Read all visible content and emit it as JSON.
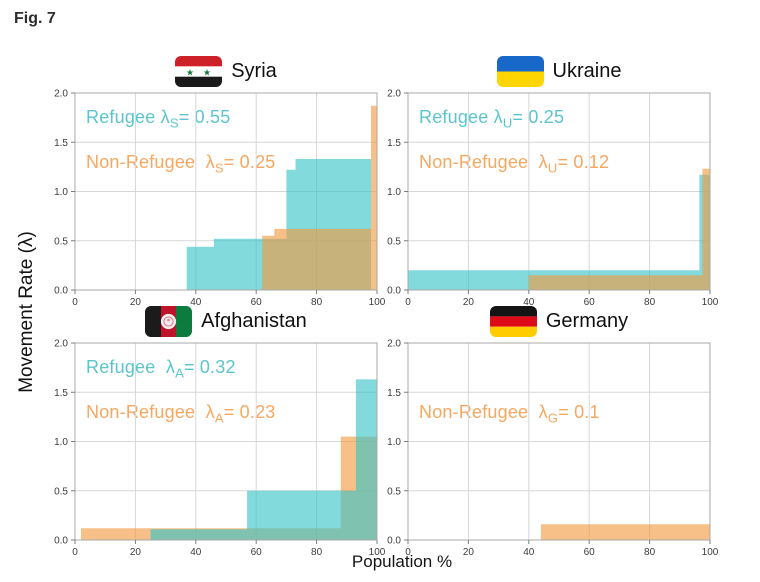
{
  "figure_label": "Fig. 7",
  "ylabel": "Movement Rate (λ)",
  "xlabel": "Population %",
  "colors": {
    "refugee_fill": "#35C4C8",
    "nonrefugee_fill": "#F29A3F",
    "fill_opacity": 0.62,
    "refugee_text": "#5BC5CE",
    "nonrefugee_text": "#F7A75F",
    "grid": "#D7D7D7",
    "spine": "#A8A8A8",
    "tick": "#7C7C7C"
  },
  "chart_data": [
    {
      "type": "bar",
      "subtype": "step-histogram",
      "country": "Syria",
      "flag": "syria",
      "xlim": [
        0,
        100
      ],
      "ylim": [
        0,
        2
      ],
      "grid": true,
      "x_ticks": [
        0,
        20,
        40,
        60,
        80,
        100
      ],
      "y_ticks": [
        0,
        0.5,
        1,
        1.5,
        2
      ],
      "y_tick_labels": [
        "0.0",
        "0.5",
        "1.0",
        "1.5",
        "2.0"
      ],
      "annotations": [
        {
          "series": "refugee",
          "line": 1,
          "prefix": "Refugee λ",
          "sub": "S",
          "suffix": "= 0.55",
          "lambda": 0.55
        },
        {
          "series": "nonrefugee",
          "line": 2,
          "prefix": "Non-Refugee  λ",
          "sub": "S",
          "suffix": "= 0.25",
          "lambda": 0.25
        }
      ],
      "series": [
        {
          "name": "Refugee",
          "key": "refugee",
          "segments": [
            [
              37,
              46,
              0.44
            ],
            [
              46,
              70,
              0.52
            ],
            [
              70,
              73,
              1.22
            ],
            [
              73,
              98,
              1.33
            ]
          ]
        },
        {
          "name": "Non-Refugee",
          "key": "nonrefugee",
          "segments": [
            [
              62,
              66,
              0.55
            ],
            [
              66,
              98,
              0.62
            ],
            [
              98,
              100,
              1.87
            ]
          ]
        }
      ]
    },
    {
      "type": "bar",
      "subtype": "step-histogram",
      "country": "Ukraine",
      "flag": "ukraine",
      "xlim": [
        0,
        100
      ],
      "ylim": [
        0,
        2
      ],
      "grid": true,
      "x_ticks": [
        0,
        20,
        40,
        60,
        80,
        100
      ],
      "y_ticks": [
        0,
        0.5,
        1,
        1.5,
        2
      ],
      "y_tick_labels": [
        "0.0",
        "0.5",
        "1.0",
        "1.5",
        "2.0"
      ],
      "annotations": [
        {
          "series": "refugee",
          "line": 1,
          "prefix": "Refugee λ",
          "sub": "U",
          "suffix": "= 0.25",
          "lambda": 0.25
        },
        {
          "series": "nonrefugee",
          "line": 2,
          "prefix": "Non-Refugee  λ",
          "sub": "U",
          "suffix": "= 0.12",
          "lambda": 0.12
        }
      ],
      "series": [
        {
          "name": "Refugee",
          "key": "refugee",
          "segments": [
            [
              0,
              96.5,
              0.2
            ],
            [
              96.5,
              100,
              1.17
            ]
          ]
        },
        {
          "name": "Non-Refugee",
          "key": "nonrefugee",
          "segments": [
            [
              40,
              97.5,
              0.15
            ],
            [
              97.5,
              100,
              1.23
            ]
          ]
        }
      ]
    },
    {
      "type": "bar",
      "subtype": "step-histogram",
      "country": "Afghanistan",
      "flag": "afghanistan",
      "xlim": [
        0,
        100
      ],
      "ylim": [
        0,
        2
      ],
      "grid": true,
      "x_ticks": [
        0,
        20,
        40,
        60,
        80,
        100
      ],
      "y_ticks": [
        0,
        0.5,
        1,
        1.5,
        2
      ],
      "y_tick_labels": [
        "0.0",
        "0.5",
        "1.0",
        "1.5",
        "2.0"
      ],
      "annotations": [
        {
          "series": "refugee",
          "line": 1,
          "prefix": "Refugee  λ",
          "sub": "A",
          "suffix": "= 0.32",
          "lambda": 0.32
        },
        {
          "series": "nonrefugee",
          "line": 2,
          "prefix": "Non-Refugee  λ",
          "sub": "A",
          "suffix": "= 0.23",
          "lambda": 0.23
        }
      ],
      "series": [
        {
          "name": "Non-Refugee",
          "key": "nonrefugee",
          "segments": [
            [
              2,
              88,
              0.12
            ],
            [
              88,
              100,
              1.05
            ]
          ]
        },
        {
          "name": "Refugee",
          "key": "refugee",
          "segments": [
            [
              25,
              57,
              0.11
            ],
            [
              57,
              93,
              0.5
            ],
            [
              93,
              100,
              1.63
            ]
          ]
        }
      ]
    },
    {
      "type": "bar",
      "subtype": "step-histogram",
      "country": "Germany",
      "flag": "germany",
      "xlim": [
        0,
        100
      ],
      "ylim": [
        0,
        2
      ],
      "grid": true,
      "x_ticks": [
        0,
        20,
        40,
        60,
        80,
        100
      ],
      "y_ticks": [
        0,
        0.5,
        1,
        1.5,
        2
      ],
      "y_tick_labels": [
        "0.0",
        "0.5",
        "1.0",
        "1.5",
        "2.0"
      ],
      "annotations": [
        {
          "series": "nonrefugee",
          "line": 2,
          "prefix": "Non-Refugee  λ",
          "sub": "G",
          "suffix": "= 0.1",
          "lambda": 0.1
        }
      ],
      "series": [
        {
          "name": "Non-Refugee",
          "key": "nonrefugee",
          "segments": [
            [
              44,
              100,
              0.16
            ]
          ]
        }
      ]
    }
  ]
}
